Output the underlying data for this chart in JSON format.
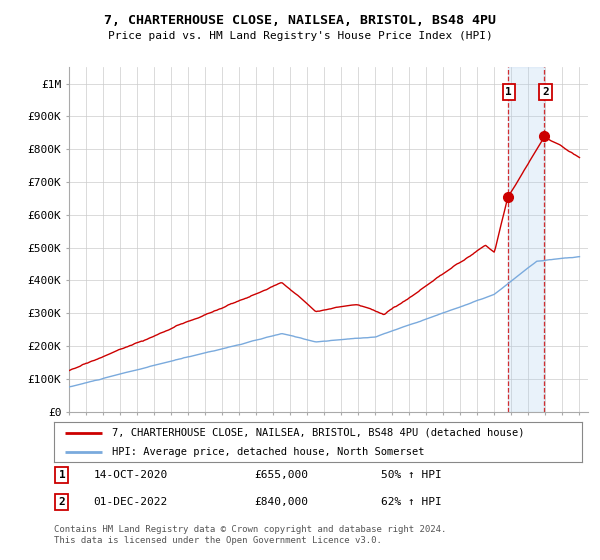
{
  "title": "7, CHARTERHOUSE CLOSE, NAILSEA, BRISTOL, BS48 4PU",
  "subtitle": "Price paid vs. HM Land Registry's House Price Index (HPI)",
  "legend_line1": "7, CHARTERHOUSE CLOSE, NAILSEA, BRISTOL, BS48 4PU (detached house)",
  "legend_line2": "HPI: Average price, detached house, North Somerset",
  "annotation1_num": "1",
  "annotation1_date": "14-OCT-2020",
  "annotation1_price": "£655,000",
  "annotation1_hpi": "50% ↑ HPI",
  "annotation2_num": "2",
  "annotation2_date": "01-DEC-2022",
  "annotation2_price": "£840,000",
  "annotation2_hpi": "62% ↑ HPI",
  "footer": "Contains HM Land Registry data © Crown copyright and database right 2024.\nThis data is licensed under the Open Government Licence v3.0.",
  "red_color": "#cc0000",
  "blue_color": "#7aaadd",
  "highlight_color": "#ddeeff",
  "ytick_labels": [
    "£0",
    "£100K",
    "£200K",
    "£300K",
    "£400K",
    "£500K",
    "£600K",
    "£700K",
    "£800K",
    "£900K",
    "£1M"
  ],
  "background": "#ffffff",
  "grid_color": "#cccccc"
}
